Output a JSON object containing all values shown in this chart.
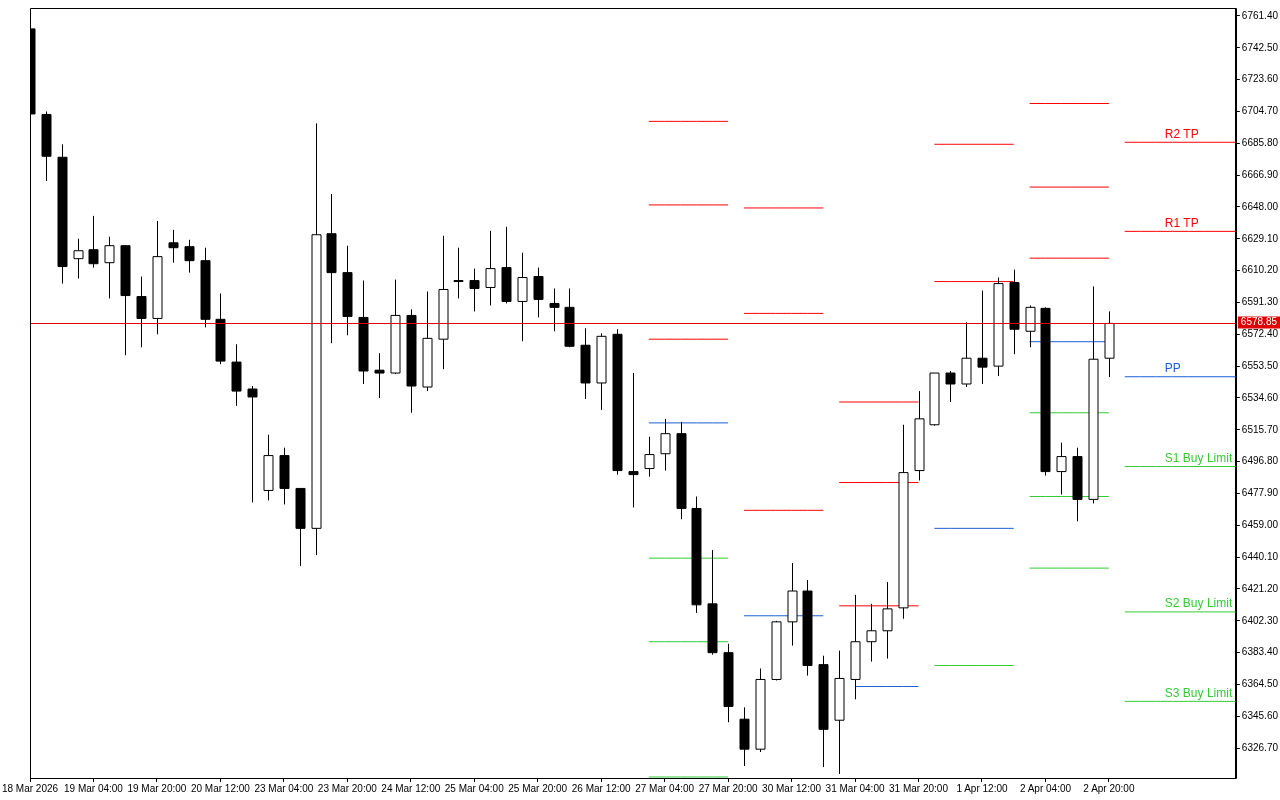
{
  "chart_data": {
    "type": "candlestick",
    "legend": false,
    "grid": false,
    "categories": [
      "18 Mar 2026",
      null,
      null,
      null,
      "19 Mar 04:00",
      null,
      null,
      null,
      "19 Mar 20:00",
      null,
      null,
      null,
      "20 Mar 12:00",
      null,
      null,
      null,
      "23 Mar 04:00",
      null,
      null,
      null,
      "23 Mar 20:00",
      null,
      null,
      null,
      "24 Mar 12:00",
      null,
      null,
      null,
      "25 Mar 04:00",
      null,
      null,
      null,
      "25 Mar 20:00",
      null,
      null,
      null,
      "26 Mar 12:00",
      null,
      null,
      null,
      "27 Mar 04:00",
      null,
      null,
      null,
      "27 Mar 20:00",
      null,
      null,
      null,
      "30 Mar 12:00",
      null,
      null,
      null,
      "31 Mar 04:00",
      null,
      null,
      null,
      "31 Mar 20:00",
      null,
      null,
      null,
      "1 Apr 12:00",
      null,
      null,
      null,
      "2 Apr 04:00",
      null,
      null,
      null,
      "2 Apr 20:00",
      null,
      null,
      null,
      null,
      null,
      null,
      null,
      null
    ],
    "ohlc": [
      [
        6753.7,
        6753.7,
        6703.2,
        6703.2
      ],
      [
        6702.9,
        6704.7,
        6663.4,
        6678.1
      ],
      [
        6677.5,
        6685.2,
        6602.5,
        6612.6
      ],
      [
        6617.3,
        6629.1,
        6605.5,
        6622.0
      ],
      [
        6622.6,
        6642.7,
        6612.0,
        6614.3
      ],
      [
        6614.9,
        6630.3,
        6593.7,
        6625.0
      ],
      [
        6625.0,
        6625.0,
        6560.0,
        6595.4
      ],
      [
        6594.8,
        6606.7,
        6564.7,
        6581.8
      ],
      [
        6581.8,
        6639.7,
        6572.4,
        6618.5
      ],
      [
        6626.7,
        6634.4,
        6614.9,
        6623.8
      ],
      [
        6624.4,
        6628.5,
        6609.0,
        6616.1
      ],
      [
        6616.1,
        6623.8,
        6576.5,
        6581.3
      ],
      [
        6581.3,
        6596.6,
        6554.7,
        6556.5
      ],
      [
        6555.9,
        6566.5,
        6529.9,
        6538.7
      ],
      [
        6539.9,
        6541.7,
        6472.6,
        6535.2
      ],
      [
        6479.7,
        6512.8,
        6473.8,
        6500.4
      ],
      [
        6500.4,
        6505.1,
        6471.4,
        6480.9
      ],
      [
        6480.9,
        6480.9,
        6434.8,
        6457.2
      ],
      [
        6457.2,
        6697.6,
        6441.3,
        6631.5
      ],
      [
        6632.1,
        6655.7,
        6567.1,
        6609.0
      ],
      [
        6609.0,
        6625.0,
        6571.8,
        6583.0
      ],
      [
        6582.4,
        6604.3,
        6542.9,
        6550.6
      ],
      [
        6551.1,
        6561.2,
        6534.6,
        6549.4
      ],
      [
        6549.4,
        6604.9,
        6548.8,
        6583.6
      ],
      [
        6583.6,
        6587.2,
        6525.8,
        6541.7
      ],
      [
        6541.1,
        6597.8,
        6538.7,
        6570.0
      ],
      [
        6569.5,
        6630.9,
        6551.7,
        6599.0
      ],
      [
        6604.3,
        6623.8,
        6593.7,
        6604.0
      ],
      [
        6604.3,
        6611.4,
        6586.0,
        6599.6
      ],
      [
        6600.2,
        6633.8,
        6589.5,
        6611.4
      ],
      [
        6612.0,
        6636.2,
        6590.7,
        6591.9
      ],
      [
        6591.9,
        6620.8,
        6568.3,
        6606.1
      ],
      [
        6606.7,
        6612.0,
        6582.4,
        6593.1
      ],
      [
        6590.7,
        6599.6,
        6574.2,
        6588.4
      ],
      [
        6588.4,
        6599.6,
        6564.7,
        6565.3
      ],
      [
        6565.9,
        6576.0,
        6534.0,
        6543.5
      ],
      [
        6543.5,
        6573.0,
        6527.5,
        6571.2
      ],
      [
        6572.4,
        6575.4,
        6489.1,
        6491.5
      ],
      [
        6490.9,
        6549.4,
        6469.6,
        6489.1
      ],
      [
        6492.7,
        6511.6,
        6487.9,
        6501.0
      ],
      [
        6501.5,
        6522.2,
        6491.5,
        6513.4
      ],
      [
        6513.4,
        6520.4,
        6462.6,
        6469.0
      ],
      [
        6469.0,
        6476.1,
        6407.0,
        6411.8
      ],
      [
        6412.4,
        6444.3,
        6382.2,
        6383.4
      ],
      [
        6383.4,
        6388.7,
        6342.1,
        6351.5
      ],
      [
        6343.9,
        6350.9,
        6316.1,
        6326.1
      ],
      [
        6326.1,
        6374.0,
        6324.4,
        6367.5
      ],
      [
        6367.5,
        6402.3,
        6366.9,
        6401.7
      ],
      [
        6401.7,
        6436.6,
        6387.6,
        6420.0
      ],
      [
        6420.0,
        6426.5,
        6369.8,
        6375.8
      ],
      [
        6376.3,
        6381.6,
        6315.5,
        6337.9
      ],
      [
        6343.3,
        6384.6,
        6311.4,
        6368.1
      ],
      [
        6367.5,
        6417.7,
        6355.7,
        6389.9
      ],
      [
        6389.9,
        6412.4,
        6378.1,
        6396.4
      ],
      [
        6396.4,
        6425.3,
        6379.9,
        6409.4
      ],
      [
        6410.0,
        6518.7,
        6403.5,
        6490.3
      ],
      [
        6491.5,
        6538.7,
        6485.6,
        6522.2
      ],
      [
        6518.7,
        6549.4,
        6518.1,
        6549.4
      ],
      [
        6549.4,
        6550.6,
        6532.2,
        6542.9
      ],
      [
        6542.9,
        6579.5,
        6541.1,
        6558.2
      ],
      [
        6558.2,
        6598.4,
        6542.9,
        6552.9
      ],
      [
        6553.5,
        6606.1,
        6547.6,
        6602.5
      ],
      [
        6603.1,
        6610.8,
        6560.6,
        6575.4
      ],
      [
        6574.2,
        6589.5,
        6564.7,
        6588.4
      ],
      [
        6587.8,
        6588.4,
        6488.5,
        6490.9
      ],
      [
        6490.9,
        6508.1,
        6477.3,
        6499.8
      ],
      [
        6499.8,
        6505.1,
        6461.4,
        6474.4
      ],
      [
        6474.4,
        6600.8,
        6472.0,
        6557.6
      ],
      [
        6558.2,
        6586.0,
        6547.0,
        6578.85
      ],
      null,
      null,
      null,
      null,
      null,
      null,
      null,
      null
    ],
    "series": [
      {
        "type": "line",
        "color": "#ff0000",
        "values": [
          null,
          null,
          null,
          null,
          null,
          null,
          null,
          null,
          null,
          null,
          null,
          null,
          null,
          null,
          null,
          null,
          null,
          null,
          null,
          null,
          null,
          null,
          null,
          null,
          null,
          null,
          null,
          null,
          null,
          null,
          null,
          null,
          null,
          null,
          null,
          null,
          null,
          null,
          null,
          6698.8,
          6698.8,
          6698.8,
          6698.8,
          6698.8,
          6698.8,
          6647.4,
          6647.4,
          6647.4,
          6647.4,
          6647.4,
          6647.4,
          6532.2,
          6532.2,
          6532.2,
          6532.2,
          6532.2,
          6532.2,
          6685.2,
          6685.2,
          6685.2,
          6685.2,
          6685.2,
          6685.2,
          6709.4,
          6709.4,
          6709.4,
          6709.4,
          6709.4,
          6709.4,
          null,
          null,
          null,
          null,
          null,
          null,
          null,
          null
        ]
      },
      {
        "type": "line",
        "color": "#ff0000",
        "values": [
          null,
          null,
          null,
          null,
          null,
          null,
          null,
          null,
          null,
          null,
          null,
          null,
          null,
          null,
          null,
          null,
          null,
          null,
          null,
          null,
          null,
          null,
          null,
          null,
          null,
          null,
          null,
          null,
          null,
          null,
          null,
          null,
          null,
          null,
          null,
          null,
          null,
          null,
          null,
          6649.2,
          6649.2,
          6649.2,
          6649.2,
          6649.2,
          6649.2,
          6584.8,
          6584.8,
          6584.8,
          6584.8,
          6584.8,
          6584.8,
          6484.4,
          6484.4,
          6484.4,
          6484.4,
          null,
          6484.4,
          6603.7,
          6603.7,
          6603.7,
          6603.7,
          6603.7,
          6603.7,
          6659.8,
          6659.8,
          6659.8,
          6659.8,
          6659.8,
          6659.8,
          null,
          null,
          null,
          null,
          null,
          null,
          null,
          null
        ]
      },
      {
        "type": "line",
        "color": "#ff0000",
        "values": [
          null,
          null,
          null,
          null,
          null,
          null,
          null,
          null,
          null,
          null,
          null,
          null,
          null,
          null,
          null,
          null,
          null,
          null,
          null,
          null,
          null,
          null,
          null,
          null,
          null,
          null,
          null,
          null,
          null,
          null,
          null,
          null,
          null,
          null,
          null,
          null,
          null,
          null,
          null,
          6569.5,
          6569.5,
          6569.5,
          6569.5,
          6569.5,
          6569.5,
          6467.9,
          6467.9,
          6467.9,
          6467.9,
          6467.9,
          6467.9,
          6411.2,
          6411.2,
          6411.2,
          6411.2,
          null,
          6411.2,
          null,
          null,
          null,
          null,
          null,
          null,
          6617.6,
          6617.6,
          6617.6,
          6617.6,
          6617.6,
          6617.6,
          null,
          null,
          null,
          null,
          null,
          null,
          null,
          null
        ]
      },
      {
        "type": "line",
        "color": "#1a5fd6",
        "values": [
          null,
          null,
          null,
          null,
          null,
          null,
          null,
          null,
          null,
          null,
          null,
          null,
          null,
          null,
          null,
          null,
          null,
          null,
          null,
          null,
          null,
          null,
          null,
          null,
          null,
          null,
          null,
          null,
          null,
          null,
          null,
          null,
          null,
          null,
          null,
          null,
          null,
          null,
          null,
          6519.8,
          6519.8,
          6519.8,
          6519.8,
          6519.8,
          6519.8,
          6405.3,
          6405.3,
          6405.3,
          null,
          null,
          6405.3,
          null,
          6363.3,
          6363.3,
          6363.3,
          6363.3,
          6363.3,
          6457.2,
          6457.2,
          6457.2,
          6457.2,
          6457.2,
          6457.2,
          6568.0,
          null,
          6568.0,
          6568.0,
          6568.0,
          6568.0,
          null,
          null,
          null,
          null,
          null,
          null,
          null,
          null
        ]
      },
      {
        "type": "line",
        "color": "#32cd32",
        "values": [
          null,
          null,
          null,
          null,
          null,
          null,
          null,
          null,
          null,
          null,
          null,
          null,
          null,
          null,
          null,
          null,
          null,
          null,
          null,
          null,
          null,
          null,
          null,
          null,
          null,
          null,
          null,
          null,
          null,
          null,
          null,
          null,
          null,
          null,
          null,
          null,
          null,
          null,
          null,
          6439.5,
          6439.5,
          6439.5,
          null,
          6439.5,
          6439.5,
          null,
          null,
          null,
          null,
          null,
          null,
          null,
          null,
          null,
          null,
          null,
          null,
          6375.8,
          6375.8,
          6375.8,
          6375.8,
          6375.8,
          6375.8,
          6525.8,
          null,
          6525.8,
          6525.8,
          null,
          6525.8,
          null,
          null,
          null,
          null,
          null,
          null,
          null,
          null
        ]
      },
      {
        "type": "line",
        "color": "#32cd32",
        "values": [
          null,
          null,
          null,
          null,
          null,
          null,
          null,
          null,
          null,
          null,
          null,
          null,
          null,
          null,
          null,
          null,
          null,
          null,
          null,
          null,
          null,
          null,
          null,
          null,
          null,
          null,
          null,
          null,
          null,
          null,
          null,
          null,
          null,
          null,
          null,
          null,
          null,
          null,
          null,
          6389.9,
          6389.9,
          6389.9,
          6389.9,
          null,
          6389.9,
          null,
          null,
          null,
          null,
          null,
          null,
          null,
          null,
          null,
          null,
          null,
          null,
          null,
          null,
          null,
          null,
          null,
          null,
          6476.1,
          6476.1,
          6476.1,
          null,
          null,
          6476.1,
          null,
          null,
          null,
          null,
          null,
          null,
          null,
          null
        ]
      },
      {
        "type": "line",
        "color": "#32cd32",
        "values": [
          null,
          null,
          null,
          null,
          null,
          null,
          null,
          null,
          null,
          null,
          null,
          null,
          null,
          null,
          null,
          null,
          null,
          null,
          null,
          null,
          null,
          null,
          null,
          null,
          null,
          null,
          null,
          null,
          null,
          null,
          null,
          null,
          null,
          null,
          null,
          null,
          null,
          null,
          null,
          6309.6,
          6309.6,
          6309.6,
          6309.6,
          6309.6,
          6309.6,
          null,
          null,
          null,
          null,
          null,
          null,
          null,
          null,
          null,
          null,
          null,
          null,
          null,
          null,
          null,
          null,
          null,
          null,
          6433.6,
          6433.6,
          6433.6,
          6433.6,
          6433.6,
          6433.6,
          null,
          null,
          null,
          null,
          null,
          null,
          null,
          null
        ]
      },
      {
        "type": "line",
        "name": "R2 TP",
        "color": "#ff0000",
        "values": [
          null,
          null,
          null,
          null,
          null,
          null,
          null,
          null,
          null,
          null,
          null,
          null,
          null,
          null,
          null,
          null,
          null,
          null,
          null,
          null,
          null,
          null,
          null,
          null,
          null,
          null,
          null,
          null,
          null,
          null,
          null,
          null,
          null,
          null,
          null,
          null,
          null,
          null,
          null,
          null,
          null,
          null,
          null,
          null,
          null,
          null,
          null,
          null,
          null,
          null,
          null,
          null,
          null,
          null,
          null,
          null,
          null,
          null,
          null,
          null,
          null,
          null,
          null,
          null,
          null,
          null,
          null,
          null,
          null,
          6686.4,
          6686.4,
          6686.4,
          6686.4,
          6686.4,
          6686.4,
          6686.4,
          6686.4
        ]
      },
      {
        "type": "line",
        "name": "R1 TP",
        "color": "#ff0000",
        "values": [
          null,
          null,
          null,
          null,
          null,
          null,
          null,
          null,
          null,
          null,
          null,
          null,
          null,
          null,
          null,
          null,
          null,
          null,
          null,
          null,
          null,
          null,
          null,
          null,
          null,
          null,
          null,
          null,
          null,
          null,
          null,
          null,
          null,
          null,
          null,
          null,
          null,
          null,
          null,
          null,
          null,
          null,
          null,
          null,
          null,
          null,
          null,
          null,
          null,
          null,
          null,
          null,
          null,
          null,
          null,
          null,
          null,
          null,
          null,
          null,
          null,
          null,
          null,
          null,
          null,
          null,
          null,
          null,
          null,
          6633.5,
          6633.5,
          6633.5,
          6633.5,
          6633.5,
          6633.5,
          6633.5,
          6633.5
        ]
      },
      {
        "type": "line",
        "name": "PP",
        "color": "#1a5fd6",
        "values": [
          null,
          null,
          null,
          null,
          null,
          null,
          null,
          null,
          null,
          null,
          null,
          null,
          null,
          null,
          null,
          null,
          null,
          null,
          null,
          null,
          null,
          null,
          null,
          null,
          null,
          null,
          null,
          null,
          null,
          null,
          null,
          null,
          null,
          null,
          null,
          null,
          null,
          null,
          null,
          null,
          null,
          null,
          null,
          null,
          null,
          null,
          null,
          null,
          null,
          null,
          null,
          null,
          null,
          null,
          null,
          null,
          null,
          null,
          null,
          null,
          null,
          null,
          null,
          null,
          null,
          null,
          null,
          null,
          null,
          6547.2,
          6547.2,
          6547.2,
          6547.2,
          6547.2,
          6547.2,
          6547.2,
          6547.2
        ]
      },
      {
        "type": "line",
        "name": "S1 Buy Limit",
        "color": "#32cd32",
        "values": [
          null,
          null,
          null,
          null,
          null,
          null,
          null,
          null,
          null,
          null,
          null,
          null,
          null,
          null,
          null,
          null,
          null,
          null,
          null,
          null,
          null,
          null,
          null,
          null,
          null,
          null,
          null,
          null,
          null,
          null,
          null,
          null,
          null,
          null,
          null,
          null,
          null,
          null,
          null,
          null,
          null,
          null,
          null,
          null,
          null,
          null,
          null,
          null,
          null,
          null,
          null,
          null,
          null,
          null,
          null,
          null,
          null,
          null,
          null,
          null,
          null,
          null,
          null,
          null,
          null,
          null,
          null,
          null,
          null,
          6493.9,
          6493.9,
          6493.9,
          6493.9,
          6493.9,
          6493.9,
          6493.9,
          6493.9
        ]
      },
      {
        "type": "line",
        "name": "S2 Buy Limit",
        "color": "#32cd32",
        "values": [
          null,
          null,
          null,
          null,
          null,
          null,
          null,
          null,
          null,
          null,
          null,
          null,
          null,
          null,
          null,
          null,
          null,
          null,
          null,
          null,
          null,
          null,
          null,
          null,
          null,
          null,
          null,
          null,
          null,
          null,
          null,
          null,
          null,
          null,
          null,
          null,
          null,
          null,
          null,
          null,
          null,
          null,
          null,
          null,
          null,
          null,
          null,
          null,
          null,
          null,
          null,
          null,
          null,
          null,
          null,
          null,
          null,
          null,
          null,
          null,
          null,
          null,
          null,
          null,
          null,
          null,
          null,
          null,
          null,
          6407.6,
          6407.6,
          6407.6,
          6407.6,
          6407.6,
          6407.6,
          6407.6,
          6407.6
        ]
      },
      {
        "type": "line",
        "name": "S3 Buy Limit",
        "color": "#32cd32",
        "values": [
          null,
          null,
          null,
          null,
          null,
          null,
          null,
          null,
          null,
          null,
          null,
          null,
          null,
          null,
          null,
          null,
          null,
          null,
          null,
          null,
          null,
          null,
          null,
          null,
          null,
          null,
          null,
          null,
          null,
          null,
          null,
          null,
          null,
          null,
          null,
          null,
          null,
          null,
          null,
          null,
          null,
          null,
          null,
          null,
          null,
          null,
          null,
          null,
          null,
          null,
          null,
          null,
          null,
          null,
          null,
          null,
          null,
          null,
          null,
          null,
          null,
          null,
          null,
          null,
          null,
          null,
          null,
          null,
          null,
          6354.5,
          6354.5,
          6354.5,
          6354.5,
          6354.5,
          6354.5,
          6354.5,
          6354.5
        ]
      }
    ],
    "ref_lines": [
      {
        "axis": "y",
        "value": 6578.85,
        "label": "6578.85",
        "color": "#e00000"
      }
    ],
    "ylim": [
      6309.0,
      6766.1
    ],
    "yticks": [
      {
        "value": 6326.7,
        "label": "6326.70"
      },
      {
        "value": 6345.6,
        "label": "6345.60"
      },
      {
        "value": 6364.5,
        "label": "6364.50"
      },
      {
        "value": 6383.4,
        "label": "6383.40"
      },
      {
        "value": 6402.3,
        "label": "6402.30"
      },
      {
        "value": 6421.2,
        "label": "6421.20"
      },
      {
        "value": 6440.1,
        "label": "6440.10"
      },
      {
        "value": 6459.0,
        "label": "6459.00"
      },
      {
        "value": 6477.9,
        "label": "6477.90"
      },
      {
        "value": 6496.8,
        "label": "6496.80"
      },
      {
        "value": 6515.7,
        "label": "6515.70"
      },
      {
        "value": 6534.6,
        "label": "6534.60"
      },
      {
        "value": 6553.5,
        "label": "6553.50"
      },
      {
        "value": 6572.4,
        "label": "6572.40"
      },
      {
        "value": 6591.3,
        "label": "6591.30"
      },
      {
        "value": 6610.2,
        "label": "6610.20"
      },
      {
        "value": 6629.1,
        "label": "6629.10"
      },
      {
        "value": 6648.0,
        "label": "6648.00"
      },
      {
        "value": 6666.9,
        "label": "6666.90"
      },
      {
        "value": 6685.8,
        "label": "6685.80"
      },
      {
        "value": 6704.7,
        "label": "6704.70"
      },
      {
        "value": 6723.6,
        "label": "6723.60"
      },
      {
        "value": 6742.5,
        "label": "6742.50"
      },
      {
        "value": 6761.4,
        "label": "6761.40"
      }
    ]
  }
}
